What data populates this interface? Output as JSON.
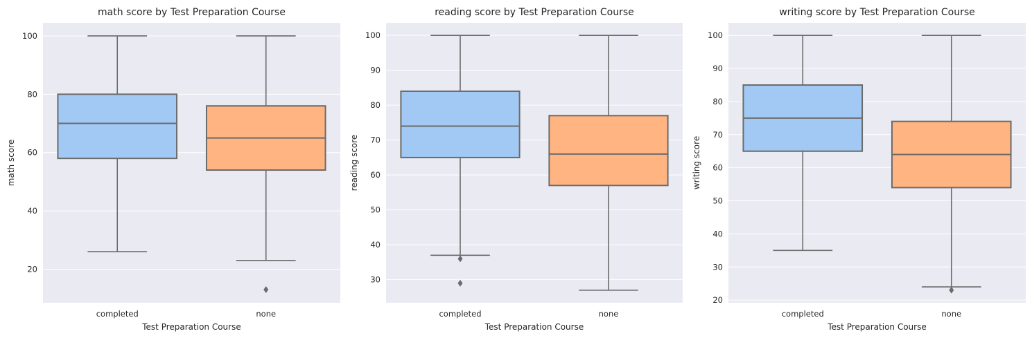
{
  "chart_data": [
    {
      "type": "box",
      "title": "math score by Test Preparation Course",
      "xlabel": "Test Preparation Course",
      "ylabel": "math score",
      "ylim": [
        8.5,
        104.5
      ],
      "yticks": [
        20,
        40,
        60,
        80,
        100
      ],
      "grid": true,
      "categories": [
        "completed",
        "none"
      ],
      "colors": [
        "#a1c9f4",
        "#ffb482"
      ],
      "boxes": [
        {
          "category": "completed",
          "whisker_low": 26,
          "q1": 58,
          "median": 70,
          "q3": 80,
          "whisker_high": 100,
          "outliers": []
        },
        {
          "category": "none",
          "whisker_low": 23,
          "q1": 54,
          "median": 65,
          "q3": 76,
          "whisker_high": 100,
          "outliers": [
            13
          ]
        }
      ]
    },
    {
      "type": "box",
      "title": "reading score by Test Preparation Course",
      "xlabel": "Test Preparation Course",
      "ylabel": "reading score",
      "ylim": [
        23.4,
        103.6
      ],
      "yticks": [
        30,
        40,
        50,
        60,
        70,
        80,
        90,
        100
      ],
      "grid": true,
      "categories": [
        "completed",
        "none"
      ],
      "colors": [
        "#a1c9f4",
        "#ffb482"
      ],
      "boxes": [
        {
          "category": "completed",
          "whisker_low": 37,
          "q1": 65,
          "median": 74,
          "q3": 84,
          "whisker_high": 100,
          "outliers": [
            36,
            29
          ]
        },
        {
          "category": "none",
          "whisker_low": 27,
          "q1": 57,
          "median": 66,
          "q3": 77,
          "whisker_high": 100,
          "outliers": []
        }
      ]
    },
    {
      "type": "box",
      "title": "writing score by Test Preparation Course",
      "xlabel": "Test Preparation Course",
      "ylabel": "writing score",
      "ylim": [
        19.2,
        103.8
      ],
      "yticks": [
        20,
        30,
        40,
        50,
        60,
        70,
        80,
        90,
        100
      ],
      "grid": true,
      "categories": [
        "completed",
        "none"
      ],
      "colors": [
        "#a1c9f4",
        "#ffb482"
      ],
      "boxes": [
        {
          "category": "completed",
          "whisker_low": 35,
          "q1": 65,
          "median": 75,
          "q3": 85,
          "whisker_high": 100,
          "outliers": []
        },
        {
          "category": "none",
          "whisker_low": 24,
          "q1": 54,
          "median": 64,
          "q3": 74,
          "whisker_high": 100,
          "outliers": [
            23
          ]
        }
      ]
    }
  ]
}
